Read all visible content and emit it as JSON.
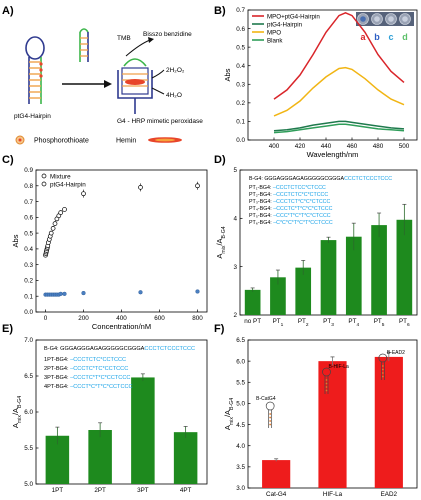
{
  "panel_labels": [
    "A)",
    "B)",
    "C)",
    "D)",
    "E)",
    "F)"
  ],
  "panelA": {
    "labels": {
      "tmb": "TMB",
      "product": "Bisszo benzidine",
      "h2o2": "2H₂O₂",
      "h2o": "4H₂O",
      "hairpin": "ptG4-Hairpin",
      "enzyme": "G4 - HRP  mimetic peroxidase",
      "legend_pt": "Phosphorothioate",
      "legend_hemin": "Hemin"
    },
    "colors": {
      "hemin": "#e8452a",
      "pt": "#f0a14a",
      "strand": "#2f3a8f",
      "probe": "#3cb54a"
    }
  },
  "chart_data": [
    {
      "panel": "B",
      "type": "line",
      "xlabel": "Wavelength/nm",
      "ylabel": "Abs",
      "xlim": [
        380,
        510
      ],
      "ylim": [
        0,
        0.7
      ],
      "xticks": [
        400,
        420,
        440,
        460,
        480,
        500
      ],
      "yticks": [
        0.0,
        0.1,
        0.2,
        0.3,
        0.4,
        0.5,
        0.6,
        0.7
      ],
      "x": [
        400,
        410,
        420,
        430,
        440,
        450,
        455,
        460,
        470,
        480,
        490,
        500
      ],
      "series": [
        {
          "name": "MPO+ptG4-Hairpin",
          "color": "#d9252a",
          "values": [
            0.22,
            0.27,
            0.35,
            0.46,
            0.58,
            0.67,
            0.685,
            0.67,
            0.58,
            0.46,
            0.37,
            0.31
          ]
        },
        {
          "name": "ptG4-Hairpin",
          "color": "#1f7a4d",
          "values": [
            0.05,
            0.055,
            0.065,
            0.08,
            0.09,
            0.1,
            0.1,
            0.095,
            0.085,
            0.075,
            0.065,
            0.06
          ]
        },
        {
          "name": "MPO",
          "color": "#f1b514",
          "values": [
            0.13,
            0.16,
            0.21,
            0.28,
            0.34,
            0.385,
            0.39,
            0.38,
            0.33,
            0.27,
            0.22,
            0.19
          ]
        },
        {
          "name": "Blank",
          "color": "#2f9e5a",
          "values": [
            0.04,
            0.045,
            0.055,
            0.065,
            0.075,
            0.085,
            0.085,
            0.08,
            0.07,
            0.06,
            0.055,
            0.05
          ]
        }
      ],
      "inset_labels": [
        "a",
        "b",
        "c",
        "d"
      ],
      "inset_colors": [
        "#d9252a",
        "#2d5fc4",
        "#2d9fd6",
        "#5cc06a"
      ],
      "legend": "top-left"
    },
    {
      "panel": "C",
      "type": "scatter",
      "xlabel": "Concentration/nM",
      "ylabel": "Abs",
      "xlim": [
        -50,
        850
      ],
      "ylim": [
        0,
        0.9
      ],
      "xticks": [
        0,
        200,
        400,
        600,
        800
      ],
      "yticks": [
        0.0,
        0.1,
        0.2,
        0.3,
        0.4,
        0.5,
        0.6,
        0.7,
        0.8,
        0.9
      ],
      "series": [
        {
          "name": "Mixture",
          "marker": "open-circle",
          "x": [
            0,
            2,
            4,
            6,
            8,
            10,
            12,
            15,
            20,
            25,
            30,
            40,
            50,
            60,
            70,
            80,
            100,
            200,
            500,
            800
          ],
          "y": [
            0.36,
            0.37,
            0.38,
            0.39,
            0.4,
            0.41,
            0.42,
            0.44,
            0.46,
            0.48,
            0.5,
            0.53,
            0.56,
            0.59,
            0.61,
            0.63,
            0.65,
            0.75,
            0.79,
            0.8
          ]
        },
        {
          "name": "ptG4-Hairpin",
          "marker": "filled-circle",
          "color": "#4a7fc1",
          "x": [
            0,
            10,
            20,
            30,
            40,
            50,
            60,
            70,
            80,
            100,
            200,
            500,
            800
          ],
          "y": [
            0.11,
            0.11,
            0.11,
            0.11,
            0.11,
            0.11,
            0.11,
            0.11,
            0.115,
            0.115,
            0.12,
            0.125,
            0.13
          ]
        }
      ],
      "legend": "top-left"
    },
    {
      "panel": "D",
      "type": "bar",
      "ylabel": "Aₘᵢₓ/Aᴮ₋ᴳ₄",
      "ylabel_main": "A",
      "ylabel_sub1": "mix",
      "ylabel_sep": "/A",
      "ylabel_sub2": "B-G4",
      "ylim": [
        2,
        5
      ],
      "yticks": [
        2,
        3,
        4,
        5
      ],
      "categories": [
        "no PT",
        "PT1",
        "PT2",
        "PT3",
        "PT4",
        "PT5",
        "PT6"
      ],
      "category_main": [
        "no PT",
        "PT",
        "PT",
        "PT",
        "PT",
        "PT",
        "PT"
      ],
      "category_sub": [
        "",
        "1",
        "2",
        "3",
        "4",
        "5",
        "6"
      ],
      "values": [
        2.52,
        2.78,
        2.98,
        3.55,
        3.62,
        3.86,
        3.97
      ],
      "errors": [
        0.04,
        0.15,
        0.15,
        0.06,
        0.28,
        0.25,
        0.32
      ],
      "color": "#1e8a1e",
      "sequence_header": {
        "label": "B-G4: ",
        "black": "GGGAGGGAGAGGGGGCGGGA",
        "blue": "CCCTCTCCCTCCC"
      },
      "sequence_rows": [
        {
          "label": "PT₁-BG4: ",
          "seq": "–CCCTCTCC*CTCCC"
        },
        {
          "label": "PT₂-BG4: ",
          "seq": "–CCCTCTC*C*CTCCC"
        },
        {
          "label": "PT₃-BG4: ",
          "seq": "–CCCTCT*C*C*CTCCC"
        },
        {
          "label": "PT₄-BG4: ",
          "seq": "–CCCTC*T*C*C*CTCCC"
        },
        {
          "label": "PT₅-BG4: ",
          "seq": "–CCC*T*C*T*C*CTCCC"
        },
        {
          "label": "PT₆-BG4: ",
          "seq": "–C*C*C*T*C*T*CCTCCC"
        }
      ]
    },
    {
      "panel": "E",
      "type": "bar",
      "ylim": [
        5.0,
        7.0
      ],
      "yticks": [
        5.0,
        5.5,
        6.0,
        6.5,
        7.0
      ],
      "categories": [
        "1PT",
        "2PT",
        "3PT",
        "4PT"
      ],
      "values": [
        5.67,
        5.75,
        6.48,
        5.72
      ],
      "errors": [
        0.12,
        0.1,
        0.05,
        0.08
      ],
      "color": "#1e8a1e",
      "sequence_header": {
        "label": "B-G4: ",
        "black": "GGGAGGGAGAGGGGGCGGGA",
        "blue": "CCCTCTCCCTCCC"
      },
      "sequence_rows": [
        {
          "label": "1PT-BG4: ",
          "seq": "–CCCTCTC*CCTCCC"
        },
        {
          "label": "2PT-BG4: ",
          "seq": "–CCCTC*TC*CCTCCC"
        },
        {
          "label": "3PT-BG4: ",
          "seq": "–CCCTC*T*C*CCTCCC"
        },
        {
          "label": "4PT-BG4: ",
          "seq": "–CCCT*C*T*C*CCTCCC"
        }
      ]
    },
    {
      "panel": "F",
      "type": "bar",
      "ylim": [
        3.0,
        6.5
      ],
      "yticks": [
        3.0,
        3.5,
        4.0,
        4.5,
        5.0,
        5.5,
        6.0,
        6.5
      ],
      "categories": [
        "Cat-G4",
        "HIF-La",
        "EAD2"
      ],
      "values": [
        3.66,
        6.0,
        6.1
      ],
      "errors": [
        0.03,
        0.1,
        0.1
      ],
      "color": "#ee1c1c",
      "inset_labels": [
        "B-CatG4",
        "B-HIF-La",
        "B-EAD2"
      ]
    }
  ]
}
